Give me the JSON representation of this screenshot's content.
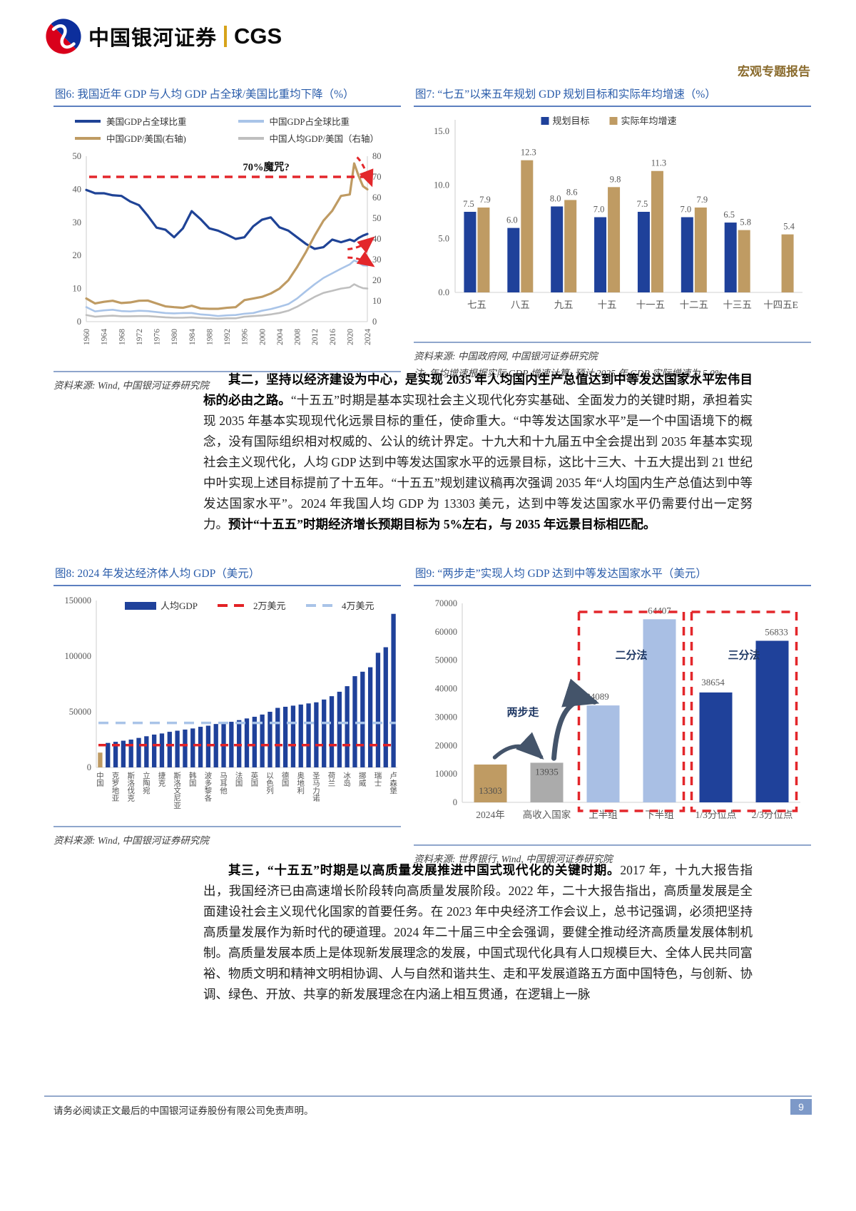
{
  "header": {
    "logo_cn": "中国银河证券",
    "logo_en": "CGS",
    "report_type": "宏观专题报告"
  },
  "colors": {
    "navy": "#1F419A",
    "light_blue": "#A9C4E8",
    "tan": "#BF9B63",
    "gray": "#BFBFBF",
    "red": "#E32226",
    "caption_blue": "#2A5CAA",
    "arrow_slate": "#44546A"
  },
  "chart_data": [
    {
      "id": "fig6",
      "type": "line",
      "title": "图6: 我国近年 GDP 与人均 GDP 占全球/美国比重均下降（%）",
      "x": [
        1960,
        1962,
        1964,
        1966,
        1968,
        1970,
        1972,
        1974,
        1976,
        1978,
        1980,
        1982,
        1984,
        1986,
        1988,
        1990,
        1992,
        1994,
        1996,
        1998,
        2000,
        2002,
        2004,
        2006,
        2008,
        2010,
        2012,
        2014,
        2016,
        2018,
        2020,
        2021,
        2022,
        2023,
        2024
      ],
      "series": [
        {
          "name": "美国GDP占全球比重",
          "axis": "left",
          "color": "#1F4396",
          "width": 3.2,
          "values": [
            39.8,
            38.8,
            38.8,
            38.2,
            38.0,
            36.3,
            35.2,
            32.0,
            28.4,
            27.8,
            25.5,
            28.2,
            33.4,
            31.0,
            28.2,
            27.5,
            26.3,
            25.0,
            25.5,
            28.8,
            30.8,
            31.5,
            28.5,
            27.5,
            25.5,
            23.5,
            22.0,
            22.5,
            24.8,
            24.0,
            24.8,
            24.3,
            25.3,
            26.0,
            26.5
          ]
        },
        {
          "name": "中国GDP占全球比重",
          "axis": "left",
          "color": "#A9C4E8",
          "width": 2.6,
          "values": [
            4.4,
            3.1,
            3.4,
            3.6,
            3.2,
            3.1,
            3.3,
            3.2,
            2.9,
            2.6,
            2.5,
            2.6,
            2.6,
            2.2,
            2.0,
            1.7,
            1.9,
            2.0,
            2.4,
            2.6,
            3.3,
            3.8,
            4.5,
            5.3,
            7.0,
            9.2,
            11.3,
            13.2,
            14.6,
            16.0,
            17.3,
            18.5,
            17.9,
            17.0,
            16.9
          ]
        },
        {
          "name": "中国GDP/美国(右轴)",
          "axis": "right",
          "color": "#BF9B63",
          "width": 3.2,
          "values": [
            11.2,
            8.8,
            9.6,
            10.1,
            9.0,
            9.3,
            10.1,
            10.2,
            8.8,
            7.4,
            7.0,
            6.7,
            7.7,
            6.4,
            6.2,
            6.2,
            6.7,
            7.0,
            10.4,
            11.2,
            12.0,
            13.6,
            16.0,
            20.0,
            26.4,
            33.6,
            41.6,
            48.8,
            53.6,
            60.8,
            61.5,
            76.5,
            70.5,
            65.5,
            64.0
          ]
        },
        {
          "name": "中国人均GDP/美国（右轴）",
          "axis": "right",
          "color": "#BFBFBF",
          "width": 2.6,
          "values": [
            3.2,
            2.4,
            2.7,
            2.9,
            2.6,
            2.6,
            2.7,
            2.7,
            2.4,
            2.1,
            1.9,
            1.9,
            2.1,
            1.8,
            1.6,
            1.4,
            1.6,
            1.6,
            2.4,
            2.7,
            3.0,
            3.5,
            4.2,
            5.3,
            7.2,
            9.6,
            12.0,
            13.9,
            14.9,
            16.0,
            16.6,
            18.1,
            17.0,
            16.2,
            16.0
          ]
        }
      ],
      "left_ylim": [
        0,
        50
      ],
      "right_ylim": [
        0,
        80
      ],
      "left_ticks": [
        0,
        10,
        20,
        30,
        40,
        50
      ],
      "right_ticks": [
        0,
        10,
        20,
        30,
        40,
        50,
        60,
        70,
        80
      ],
      "xticks": [
        1960,
        1964,
        1968,
        1972,
        1976,
        1980,
        1984,
        1988,
        1992,
        1996,
        2000,
        2004,
        2008,
        2012,
        2016,
        2020,
        2024
      ],
      "ref_line_right": 70,
      "ref_label": "70%魔咒?",
      "source": "资料来源: Wind, 中国银河证券研究院"
    },
    {
      "id": "fig7",
      "type": "bar",
      "title": "图7: “七五”以来五年规划 GDP 规划目标和实际年均增速（%）",
      "categories": [
        "七五",
        "八五",
        "九五",
        "十五",
        "十一五",
        "十二五",
        "十三五",
        "十四五E"
      ],
      "series": [
        {
          "name": "规划目标",
          "color": "#1F419A",
          "values": [
            7.5,
            6.0,
            8.0,
            7.0,
            7.5,
            7.0,
            6.5,
            null
          ]
        },
        {
          "name": "实际年均增速",
          "color": "#BF9B63",
          "values": [
            7.9,
            12.3,
            8.6,
            9.8,
            11.3,
            7.9,
            5.8,
            5.4
          ]
        }
      ],
      "ylim": [
        0,
        15
      ],
      "yticks": [
        "0.0",
        "5.0",
        "10.0",
        "15.0"
      ],
      "source": "资料来源: 中国政府网, 中国银河证券研究院",
      "note": "注: 年均增速根据实际 GDP 增速计算; 预计 2025 年 GDP 实际增速为 5.0%"
    },
    {
      "id": "fig8",
      "type": "bar",
      "title": "图8: 2024 年发达经济体人均 GDP（美元）",
      "legend": [
        "人均GDP",
        "2万美元",
        "4万美元"
      ],
      "categories": [
        "中国",
        "",
        "克罗地亚",
        "",
        "斯洛伐克",
        "",
        "立陶宛",
        "",
        "捷克",
        "",
        "斯洛文尼亚",
        "",
        "韩国",
        "",
        "波多黎各",
        "",
        "马耳他",
        "",
        "法国",
        "",
        "英国",
        "",
        "以色列",
        "",
        "德国",
        "",
        "奥地利",
        "",
        "圣马力诺",
        "",
        "荷兰",
        "",
        "冰岛",
        "",
        "挪威",
        "",
        "瑞士",
        "",
        "卢森堡"
      ],
      "values": [
        13303,
        22000,
        23000,
        24000,
        25000,
        26500,
        28000,
        29500,
        30500,
        32000,
        33000,
        34000,
        35000,
        36500,
        37500,
        39000,
        40000,
        41000,
        42500,
        44000,
        45500,
        47500,
        50000,
        53500,
        54500,
        55500,
        56500,
        57500,
        58500,
        61000,
        64000,
        68000,
        73000,
        82000,
        86000,
        90000,
        103000,
        108000,
        138000
      ],
      "bar_color_default": "#1F419A",
      "bar_color_first": "#BF9B63",
      "ref_lines": [
        {
          "value": 20000,
          "color": "#E32226"
        },
        {
          "value": 40000,
          "color": "#A9C4E8"
        }
      ],
      "ylim": [
        0,
        150000
      ],
      "yticks": [
        0,
        50000,
        100000,
        150000
      ],
      "source": "资料来源: Wind, 中国银河证券研究院"
    },
    {
      "id": "fig9",
      "type": "bar",
      "title": "图9: “两步走”实现人均 GDP 达到中等发达国家水平（美元）",
      "categories": [
        "2024年",
        "高收入国家",
        "上半组",
        "下半组",
        "1/3分位点",
        "2/3分位点"
      ],
      "values": [
        13303,
        13935,
        34089,
        64407,
        38654,
        56833
      ],
      "bar_colors": [
        "#BF9B63",
        "#ABABAB",
        "#A9BFE4",
        "#A9BFE4",
        "#1F419A",
        "#1F419A"
      ],
      "ylim": [
        0,
        70000
      ],
      "yticks": [
        0,
        10000,
        20000,
        30000,
        40000,
        50000,
        60000,
        70000
      ],
      "labels": {
        "two_step": "两步走",
        "dichotomy": "二分法",
        "trichotomy": "三分法"
      },
      "source": "资料来源: 世界银行, Wind, 中国银河证券研究院"
    }
  ],
  "para1": {
    "lead_bold": "其二，坚持以经济建设为中心，是实现 2035 年人均国内生产总值达到中等发达国家水平宏伟目标的必由之路。",
    "body": "“十五五”时期是基本实现社会主义现代化夯实基础、全面发力的关键时期，承担着实现 2035 年基本实现现代化远景目标的重任，使命重大。“中等发达国家水平”是一个中国语境下的概念，没有国际组织相对权威的、公认的统计界定。十九大和十九届五中全会提出到 2035 年基本实现社会主义现代化，人均 GDP 达到中等发达国家水平的远景目标，这比十三大、十五大提出到 21 世纪中叶实现上述目标提前了十五年。“十五五”规划建议稿再次强调 2035 年“人均国内生产总值达到中等发达国家水平”。2024 年我国人均 GDP 为 13303 美元，达到中等发达国家水平仍需要付出一定努力。",
    "tail_bold": "预计“十五五”时期经济增长预期目标为 5%左右，与 2035 年远景目标相匹配。"
  },
  "para2": {
    "lead_bold": "其三，“十五五”时期是以高质量发展推进中国式现代化的关键时期。",
    "body": "2017 年，十九大报告指出，我国经济已由高速增长阶段转向高质量发展阶段。2022 年，二十大报告指出，高质量发展是全面建设社会主义现代化国家的首要任务。在 2023 年中央经济工作会议上，总书记强调，必须把坚持高质量发展作为新时代的硬道理。2024 年二十届三中全会强调，要健全推动经济高质量发展体制机制。高质量发展本质上是体现新发展理念的发展，中国式现代化具有人口规模巨大、全体人民共同富裕、物质文明和精神文明相协调、人与自然和谐共生、走和平发展道路五方面中国特色，与创新、协调、绿色、开放、共享的新发展理念在内涵上相互贯通，在逻辑上一脉"
  },
  "footer": {
    "disclaimer": "请务必阅读正文最后的中国银河证券股份有限公司免责声明。",
    "page": "9"
  }
}
